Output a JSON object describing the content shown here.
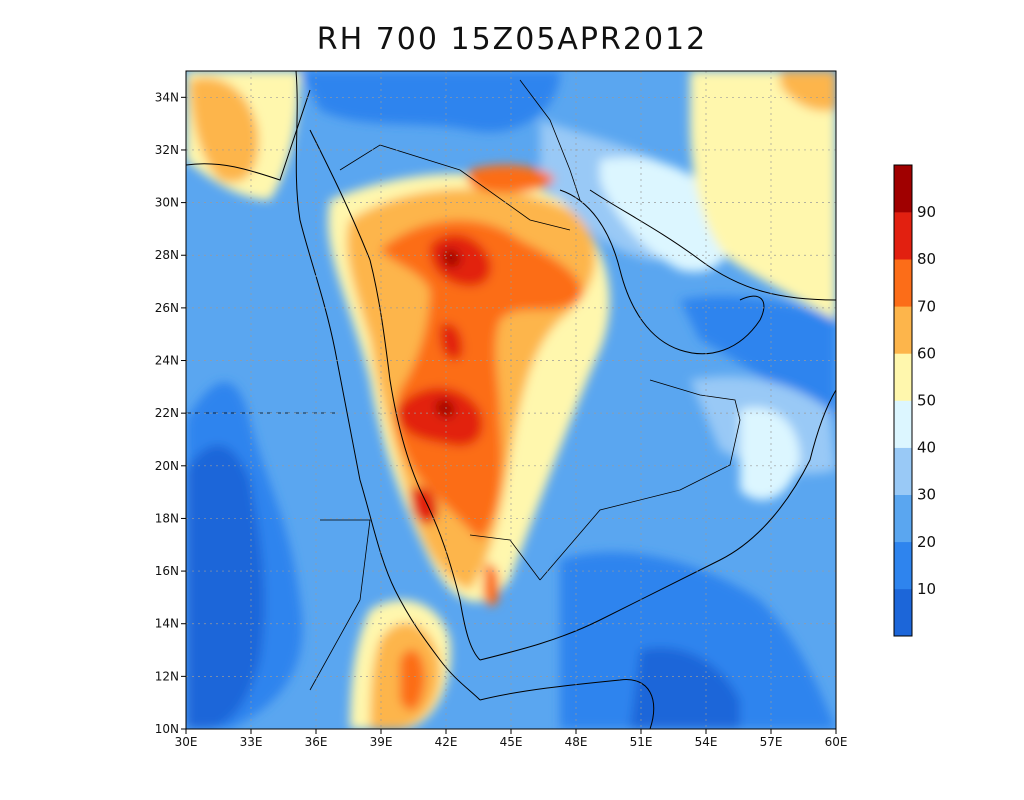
{
  "title": "RH 700 15Z05APR2012",
  "map": {
    "lon_range": [
      30,
      60
    ],
    "lat_range": [
      10,
      35
    ],
    "lon_ticks": [
      "30E",
      "33E",
      "36E",
      "39E",
      "42E",
      "45E",
      "48E",
      "51E",
      "54E",
      "57E",
      "60E"
    ],
    "lat_ticks": [
      "10N",
      "12N",
      "14N",
      "16N",
      "18N",
      "20N",
      "22N",
      "24N",
      "26N",
      "28N",
      "30N",
      "32N",
      "34N"
    ],
    "gridlines": "dotted",
    "background_color": "#5aa6f0"
  },
  "colorbar": {
    "position": "right",
    "levels": [
      "10",
      "20",
      "30",
      "40",
      "50",
      "60",
      "70",
      "80",
      "90"
    ],
    "colors": [
      "#1c66d9",
      "#2e84ee",
      "#5aa6f0",
      "#99c9f6",
      "#dcf6ff",
      "#fff7ad",
      "#fdb54b",
      "#fc6d18",
      "#e22010",
      "#a00000"
    ]
  }
}
